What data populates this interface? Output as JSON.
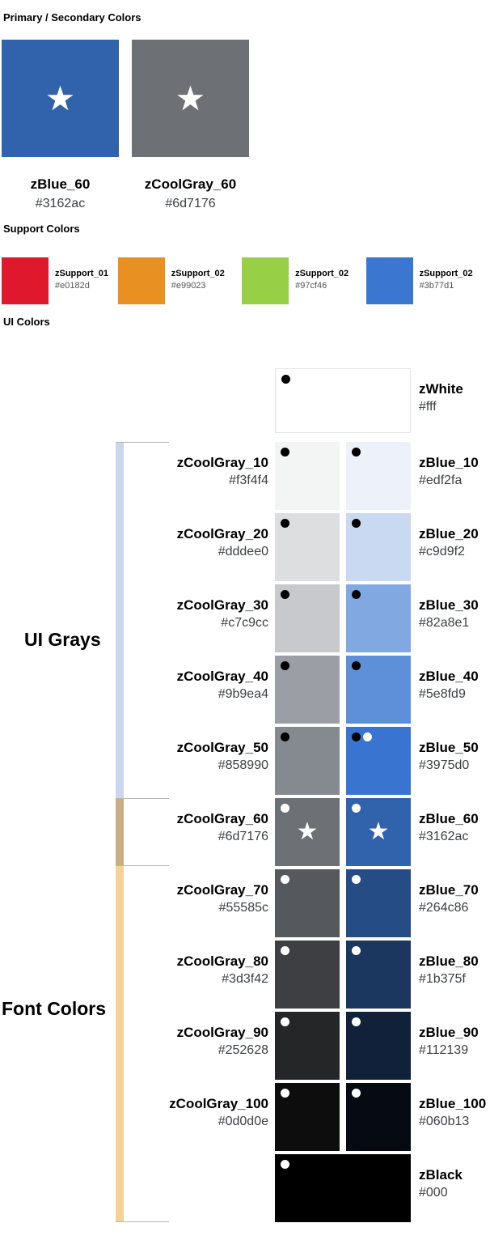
{
  "icons": {
    "star": "★"
  },
  "primary": {
    "title": "Primary / Secondary Colors",
    "swatches": [
      {
        "name": "zBlue_60",
        "hex": "#3162ac"
      },
      {
        "name": "zCoolGray_60",
        "hex": "#6d7176"
      }
    ]
  },
  "support": {
    "title": "Support Colors",
    "swatches": [
      {
        "name": "zSupport_01",
        "hex": "#e0182d"
      },
      {
        "name": "zSupport_02",
        "hex": "#e99023"
      },
      {
        "name": "zSupport_02",
        "hex": "#97cf46"
      },
      {
        "name": "zSupport_02",
        "hex": "#3b77d1"
      }
    ]
  },
  "ui": {
    "title": "UI Colors",
    "group_grays": "UI Grays",
    "group_fonts": "Font Colors",
    "white": {
      "name": "zWhite",
      "hex": "#fff"
    },
    "black": {
      "name": "zBlack",
      "hex": "#000"
    },
    "rows": [
      {
        "gray": {
          "name": "zCoolGray_10",
          "hex": "#f3f4f4"
        },
        "blue": {
          "name": "zBlue_10",
          "hex": "#edf2fa"
        }
      },
      {
        "gray": {
          "name": "zCoolGray_20",
          "hex": "#dddee0"
        },
        "blue": {
          "name": "zBlue_20",
          "hex": "#c9d9f2"
        }
      },
      {
        "gray": {
          "name": "zCoolGray_30",
          "hex": "#c7c9cc"
        },
        "blue": {
          "name": "zBlue_30",
          "hex": "#82a8e1"
        }
      },
      {
        "gray": {
          "name": "zCoolGray_40",
          "hex": "#9b9ea4"
        },
        "blue": {
          "name": "zBlue_40",
          "hex": "#5e8fd9"
        }
      },
      {
        "gray": {
          "name": "zCoolGray_50",
          "hex": "#858990"
        },
        "blue": {
          "name": "zBlue_50",
          "hex": "#3975d0"
        }
      },
      {
        "gray": {
          "name": "zCoolGray_60",
          "hex": "#6d7176"
        },
        "blue": {
          "name": "zBlue_60",
          "hex": "#3162ac"
        }
      },
      {
        "gray": {
          "name": "zCoolGray_70",
          "hex": "#55585c"
        },
        "blue": {
          "name": "zBlue_70",
          "hex": "#264c86"
        }
      },
      {
        "gray": {
          "name": "zCoolGray_80",
          "hex": "#3d3f42"
        },
        "blue": {
          "name": "zBlue_80",
          "hex": "#1b375f"
        }
      },
      {
        "gray": {
          "name": "zCoolGray_90",
          "hex": "#252628"
        },
        "blue": {
          "name": "zBlue_90",
          "hex": "#112139"
        }
      },
      {
        "gray": {
          "name": "zCoolGray_100",
          "hex": "#0d0d0e"
        },
        "blue": {
          "name": "zBlue_100",
          "hex": "#060b13"
        }
      }
    ]
  }
}
